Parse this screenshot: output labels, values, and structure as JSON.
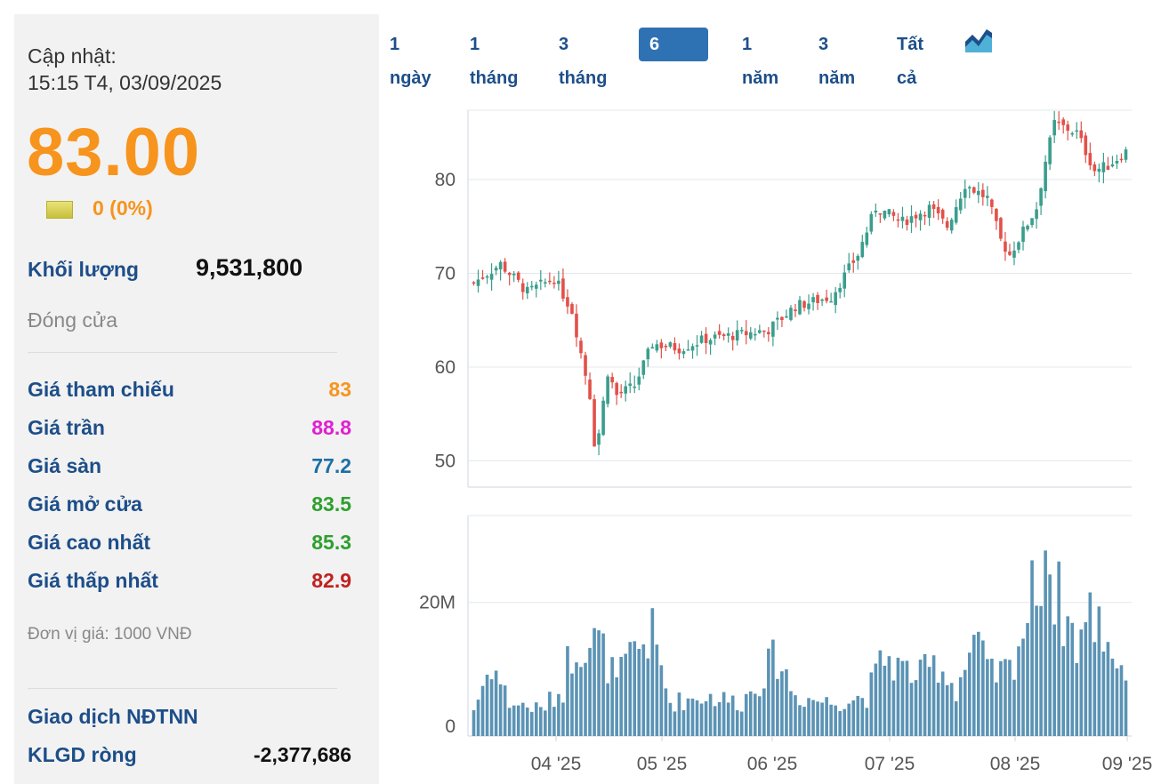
{
  "info": {
    "update_label": "Cập nhật:",
    "update_time": "15:15 T4, 03/09/2025",
    "price": "83.00",
    "change": "0 (0%)",
    "volume_label": "Khối lượng",
    "volume": "9,531,800",
    "close_label": "Đóng cửa",
    "rows": [
      {
        "label": "Giá tham chiếu",
        "value": "83",
        "color": "#f7941d"
      },
      {
        "label": "Giá trần",
        "value": "88.8",
        "color": "#e020d0"
      },
      {
        "label": "Giá sàn",
        "value": "77.2",
        "color": "#1d6fa5"
      },
      {
        "label": "Giá mở cửa",
        "value": "83.5",
        "color": "#2ea02e"
      },
      {
        "label": "Giá cao nhất",
        "value": "85.3",
        "color": "#2ea02e"
      },
      {
        "label": "Giá thấp nhất",
        "value": "82.9",
        "color": "#c0211f"
      }
    ],
    "unit_note": "Đơn vị giá: 1000 VNĐ",
    "foreign_title": "Giao dịch NĐTNN",
    "net_label": "KLGD ròng",
    "net_value": "-2,377,686"
  },
  "tabs": [
    "1 ngày",
    "1 tháng",
    "3 tháng",
    "6 tháng",
    "1 năm",
    "3 năm",
    "Tất cả"
  ],
  "active_tab": "6 tháng",
  "icons": {
    "chart": "area-chart-icon"
  },
  "colors": {
    "up": "#3a9e8c",
    "down": "#e2514a",
    "volume": "#5b93b5",
    "accent": "#f7941d",
    "brand": "#1d4e89"
  },
  "chart_data": {
    "type": "candlestick",
    "price_axis": {
      "ticks": [
        "50",
        "60",
        "70",
        "80"
      ],
      "ylim": [
        48,
        90
      ]
    },
    "volume_axis": {
      "ticks": [
        "0",
        "20M"
      ],
      "ylim": [
        0,
        30000000
      ]
    },
    "x_ticks": [
      "04 '25",
      "05 '25",
      "06 '25",
      "07 '25",
      "08 '25",
      "09 '25"
    ],
    "grid": true,
    "close_anchors": [
      [
        0,
        69.0
      ],
      [
        6,
        71.0
      ],
      [
        12,
        68.0
      ],
      [
        18,
        69.5
      ],
      [
        22,
        66.0
      ],
      [
        24,
        61.5
      ],
      [
        26,
        57.0
      ],
      [
        27,
        52.0
      ],
      [
        28,
        53.0
      ],
      [
        30,
        59.5
      ],
      [
        32,
        57.0
      ],
      [
        36,
        58.0
      ],
      [
        40,
        62.5
      ],
      [
        46,
        62.0
      ],
      [
        52,
        63.0
      ],
      [
        60,
        63.5
      ],
      [
        66,
        64.0
      ],
      [
        72,
        66.5
      ],
      [
        80,
        67.5
      ],
      [
        86,
        72.0
      ],
      [
        90,
        77.0
      ],
      [
        96,
        75.5
      ],
      [
        102,
        77.0
      ],
      [
        106,
        75.0
      ],
      [
        110,
        79.5
      ],
      [
        115,
        78.0
      ],
      [
        118,
        73.5
      ],
      [
        120,
        72.0
      ],
      [
        126,
        77.0
      ],
      [
        128,
        82.0
      ],
      [
        130,
        86.0
      ],
      [
        135,
        85.0
      ],
      [
        139,
        81.0
      ],
      [
        142,
        81.5
      ],
      [
        146,
        83.0
      ]
    ],
    "volume_anchors_m": [
      [
        0,
        4
      ],
      [
        4,
        11
      ],
      [
        8,
        5
      ],
      [
        15,
        4
      ],
      [
        20,
        7
      ],
      [
        21,
        11
      ],
      [
        23,
        14
      ],
      [
        26,
        14
      ],
      [
        28,
        14
      ],
      [
        32,
        8
      ],
      [
        36,
        13
      ],
      [
        40,
        15
      ],
      [
        44,
        5
      ],
      [
        52,
        6
      ],
      [
        60,
        5
      ],
      [
        68,
        12
      ],
      [
        72,
        6
      ],
      [
        80,
        5
      ],
      [
        88,
        6
      ],
      [
        92,
        12
      ],
      [
        96,
        10
      ],
      [
        100,
        9
      ],
      [
        104,
        11
      ],
      [
        108,
        7
      ],
      [
        112,
        14
      ],
      [
        116,
        9
      ],
      [
        120,
        10
      ],
      [
        124,
        18
      ],
      [
        128,
        29
      ],
      [
        130,
        22
      ],
      [
        135,
        14
      ],
      [
        138,
        18
      ],
      [
        140,
        17
      ],
      [
        146,
        9
      ]
    ],
    "count": 147
  }
}
